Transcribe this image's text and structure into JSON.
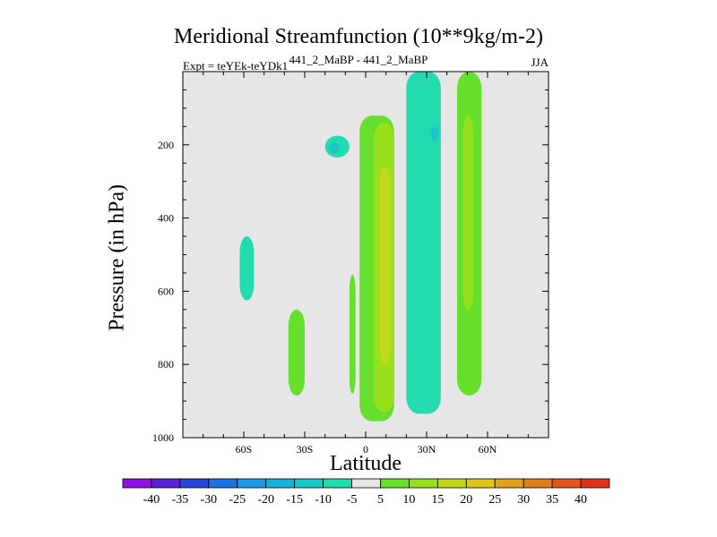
{
  "chart_data": {
    "type": "heatmap",
    "title": "Meridional Streamfunction (10**9kg/m-2)",
    "subtitle_left": "Expt = teYEk-teYDk1",
    "subtitle_center": "441_2_MaBP - 441_2_MaBP",
    "subtitle_right": "JJA",
    "xlabel": "Latitude",
    "ylabel": "Pressure (in hPa)",
    "xlim": [
      -90,
      90
    ],
    "ylim": [
      1000,
      0
    ],
    "x_ticks": [
      "60S",
      "30S",
      "0",
      "30N",
      "60N"
    ],
    "x_tick_values": [
      -60,
      -30,
      0,
      30,
      60
    ],
    "y_ticks": [
      "200",
      "400",
      "600",
      "800",
      "1000"
    ],
    "y_tick_values": [
      200,
      400,
      600,
      800,
      1000
    ],
    "colorbar": {
      "labels": [
        "-40",
        "-35",
        "-30",
        "-25",
        "-20",
        "-15",
        "-10",
        "-5",
        "5",
        "10",
        "15",
        "20",
        "25",
        "30",
        "35",
        "40"
      ],
      "colors": [
        "#8f14e0",
        "#5a1fd6",
        "#2747d9",
        "#1e73e3",
        "#1d96e6",
        "#17b2da",
        "#17c8c6",
        "#22dcb0",
        "#e6e6e6",
        "#66e02c",
        "#98e01c",
        "#c2d81a",
        "#e0c41a",
        "#e0a21b",
        "#e0801c",
        "#e0561c",
        "#e0331c"
      ]
    },
    "background_color": "#e6e6e6",
    "regions": [
      {
        "level": "-10 to -5",
        "lat": [
          -62,
          -55
        ],
        "p": [
          450,
          625
        ]
      },
      {
        "level": "5 to 10",
        "lat": [
          -38,
          -30
        ],
        "p": [
          650,
          885
        ]
      },
      {
        "level": "-10 to -5",
        "lat": [
          -20,
          -8
        ],
        "p": [
          175,
          235
        ]
      },
      {
        "level": "-15 to -10",
        "lat": [
          -18,
          -13
        ],
        "p": [
          195,
          225
        ]
      },
      {
        "level": "5 to 10",
        "lat": [
          -8,
          -5
        ],
        "p": [
          555,
          880
        ]
      },
      {
        "level": "5 to 10",
        "lat": [
          -3,
          14
        ],
        "p": [
          120,
          955
        ]
      },
      {
        "level": "10 to 15",
        "lat": [
          4,
          14
        ],
        "p": [
          140,
          930
        ]
      },
      {
        "level": "15 to 20",
        "lat": [
          7,
          12
        ],
        "p": [
          260,
          800
        ]
      },
      {
        "level": "-10 to -5",
        "lat": [
          20,
          37
        ],
        "p": [
          0,
          935
        ]
      },
      {
        "level": "-15 to -10",
        "lat": [
          32,
          36
        ],
        "p": [
          150,
          190
        ]
      },
      {
        "level": "5 to 10",
        "lat": [
          45,
          57
        ],
        "p": [
          0,
          885
        ]
      },
      {
        "level": "10 to 15",
        "lat": [
          48,
          53
        ],
        "p": [
          120,
          650
        ]
      }
    ]
  }
}
